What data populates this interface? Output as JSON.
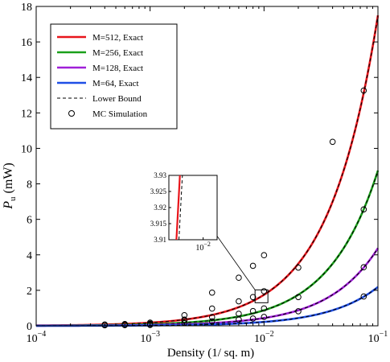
{
  "chart_data": {
    "type": "line",
    "xscale": "log",
    "xlim": [
      0.0001,
      0.1
    ],
    "ylim": [
      0,
      18
    ],
    "x_tick_labels": [
      {
        "base": "10",
        "exp": "−4",
        "value": 0.0001
      },
      {
        "base": "10",
        "exp": "−3",
        "value": 0.001
      },
      {
        "base": "10",
        "exp": "−2",
        "value": 0.01
      },
      {
        "base": "10",
        "exp": "−1",
        "value": 0.1
      }
    ],
    "y_ticks": [
      0,
      2,
      4,
      6,
      8,
      10,
      12,
      14,
      16,
      18
    ],
    "xlabel": "Density (1/ sq. m)",
    "ylabel_main": "P",
    "ylabel_sub": "u",
    "ylabel_unit": "(mW)",
    "grid": false,
    "legend_position": "top-left",
    "series": [
      {
        "name": "M=512, Exact",
        "color": "#e8151b",
        "coef": 175,
        "mc_x": [
          0.0004,
          0.0006,
          0.001,
          0.002,
          0.0035,
          0.006,
          0.008,
          0.01,
          0.04,
          0.075
        ],
        "mc_y": [
          0.07,
          0.1,
          0.18,
          0.35,
          1.87,
          2.71,
          3.38,
          3.98,
          10.37,
          13.26
        ]
      },
      {
        "name": "M=256, Exact",
        "color": "#1aa01a",
        "coef": 87.5,
        "mc_x": [
          0.0004,
          0.0006,
          0.001,
          0.002,
          0.0035,
          0.006,
          0.008,
          0.01,
          0.02,
          0.075
        ],
        "mc_y": [
          0.05,
          0.07,
          0.12,
          0.6,
          0.97,
          1.38,
          1.62,
          1.95,
          3.28,
          6.56
        ]
      },
      {
        "name": "M=128, Exact",
        "color": "#a020d8",
        "coef": 43.75,
        "mc_x": [
          0.0004,
          0.0006,
          0.001,
          0.002,
          0.0035,
          0.006,
          0.008,
          0.01,
          0.02,
          0.075
        ],
        "mc_y": [
          0.05,
          0.05,
          0.09,
          0.3,
          0.49,
          0.68,
          0.83,
          0.98,
          1.62,
          3.3
        ]
      },
      {
        "name": "M=64,  Exact",
        "color": "#1f4fe6",
        "coef": 21.875,
        "mc_x": [
          0.0004,
          0.0006,
          0.001,
          0.002,
          0.0035,
          0.006,
          0.008,
          0.01,
          0.02,
          0.075
        ],
        "mc_y": [
          0.03,
          0.04,
          0.05,
          0.15,
          0.25,
          0.35,
          0.41,
          0.5,
          0.82,
          1.65
        ]
      }
    ],
    "lower_bound": {
      "name": "Lower Bound",
      "color": "#000000",
      "style": "dashed"
    },
    "mc_simulation": {
      "name": "MC Simulation",
      "marker": "circle"
    },
    "inset": {
      "x_tick_label": {
        "base": "10",
        "exp": "−2"
      },
      "y_ticks": [
        "3.93",
        "3.925",
        "3.92",
        "3.915",
        "3.91"
      ],
      "ylim": [
        3.91,
        3.93
      ],
      "exact_line": [
        [
          0.00945,
          3.91
        ],
        [
          0.00952,
          3.93
        ]
      ],
      "bound_line": [
        [
          0.0095,
          3.91
        ],
        [
          0.00957,
          3.93
        ]
      ]
    }
  }
}
